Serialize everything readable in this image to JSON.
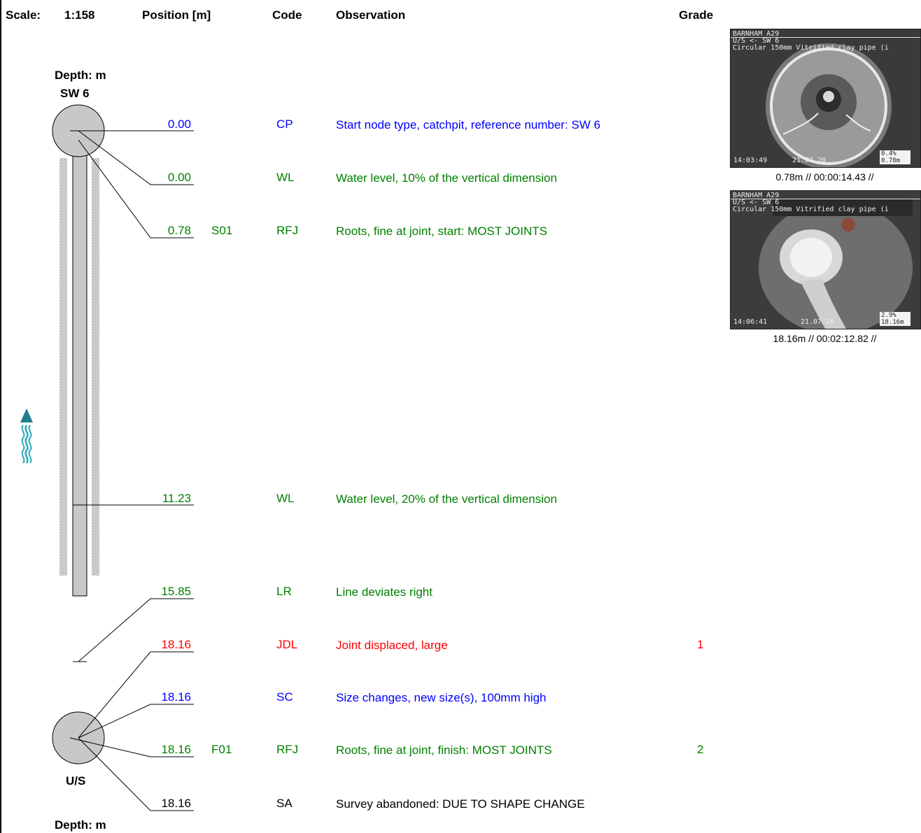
{
  "header": {
    "scale_label": "Scale:",
    "scale_value": "1:158",
    "position": "Position [m]",
    "code": "Code",
    "observation": "Observation",
    "grade": "Grade"
  },
  "start_node": {
    "depth": "Depth: m",
    "name": "SW 6"
  },
  "end_node": {
    "name": "U/S",
    "depth": "Depth: m"
  },
  "colors": {
    "blue": "#0000ff",
    "green": "#008000",
    "red": "#ff0000",
    "black": "#000000"
  },
  "observations": [
    {
      "position": "0.00",
      "ref": "",
      "code": "CP",
      "text": "Start node type, catchpit, reference number: SW 6",
      "grade": "",
      "color": "#0000ff"
    },
    {
      "position": "0.00",
      "ref": "",
      "code": "WL",
      "text": "Water level, 10% of the vertical dimension",
      "grade": "",
      "color": "#008000"
    },
    {
      "position": "0.78",
      "ref": "S01",
      "code": "RFJ",
      "text": "Roots, fine at joint, start: MOST JOINTS",
      "grade": "",
      "color": "#008000"
    },
    {
      "position": "11.23",
      "ref": "",
      "code": "WL",
      "text": "Water level, 20% of the vertical dimension",
      "grade": "",
      "color": "#008000"
    },
    {
      "position": "15.85",
      "ref": "",
      "code": "LR",
      "text": "Line deviates right",
      "grade": "",
      "color": "#008000"
    },
    {
      "position": "18.16",
      "ref": "",
      "code": "JDL",
      "text": "Joint displaced, large",
      "grade": "1",
      "color": "#ff0000"
    },
    {
      "position": "18.16",
      "ref": "",
      "code": "SC",
      "text": "Size changes, new size(s), 100mm high",
      "grade": "",
      "color": "#0000ff"
    },
    {
      "position": "18.16",
      "ref": "F01",
      "code": "RFJ",
      "text": "Roots, fine at joint, finish: MOST JOINTS",
      "grade": "2",
      "color": "#008000"
    },
    {
      "position": "18.16",
      "ref": "",
      "code": "SA",
      "text": "Survey abandoned: DUE TO SHAPE CHANGE",
      "grade": "",
      "color": "#000000"
    }
  ],
  "photos": [
    {
      "hud_line1": "BARNHAM A29",
      "hud_line2": "U/S <- SW 6",
      "hud_line3": "Circular 150mm Vitrified clay pipe (i",
      "time": "14:03:49",
      "date": "21.07.20",
      "box_line1": "0.4%",
      "box_line2": "0.78m",
      "caption": "0.78m // 00:00:14.43 //"
    },
    {
      "hud_line1": "BARNHAM A29",
      "hud_line2": "U/S <- SW 6",
      "hud_line3": "Circular 150mm Vitrified clay pipe (i",
      "time": "14:06:41",
      "date": "21.07.20",
      "box_line1": "2.9%",
      "box_line2": "18.16m",
      "caption": "18.16m // 00:02:12.82 //"
    }
  ]
}
